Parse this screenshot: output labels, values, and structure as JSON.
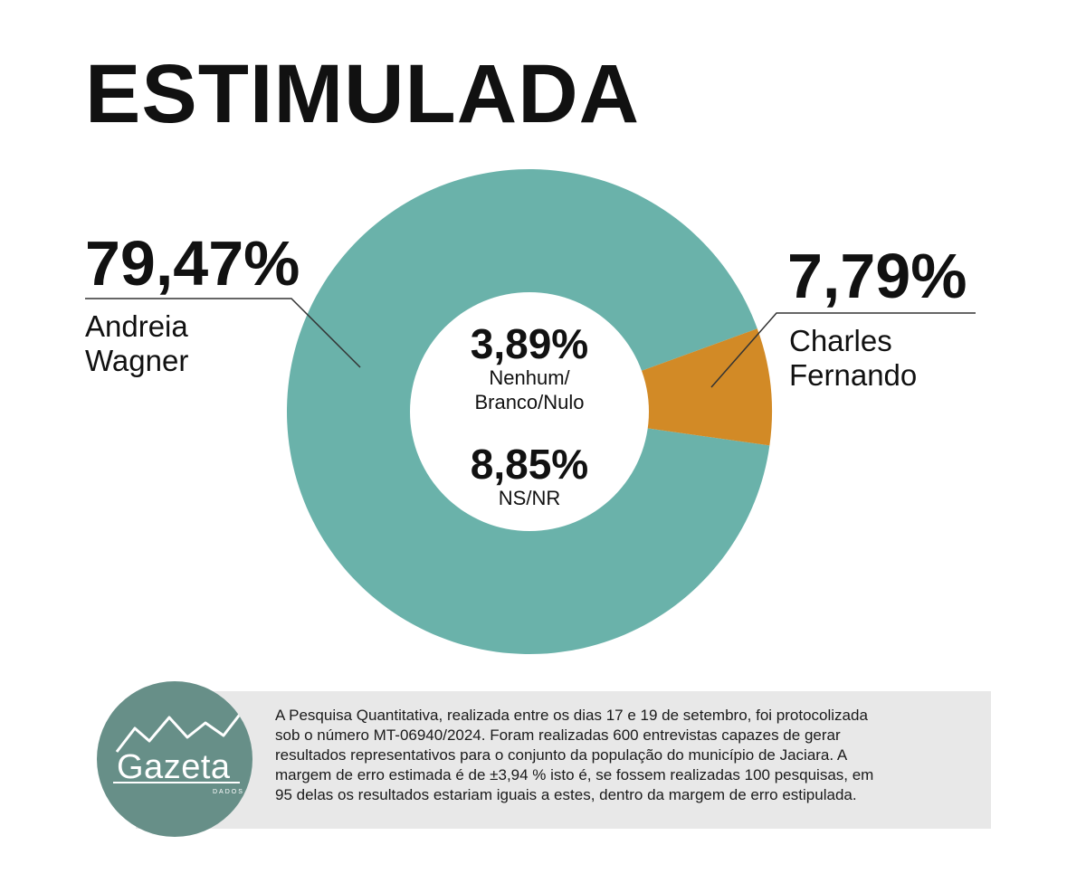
{
  "title": "ESTIMULADA",
  "chart_data": {
    "type": "pie",
    "title": "ESTIMULADA",
    "slices": [
      {
        "label": "Andreia Wagner",
        "value": 79.47,
        "display": "79,47%",
        "color": "#6ab2aa"
      },
      {
        "label": "Charles Fernando",
        "value": 7.79,
        "display": "7,79%",
        "color": "#d28a26"
      }
    ],
    "center_values": [
      {
        "display": "3,89%",
        "label_lines": [
          "Nenhum/",
          "Branco/Nulo"
        ]
      },
      {
        "display": "8,85%",
        "label_lines": [
          "NS/NR"
        ]
      }
    ]
  },
  "labels": {
    "left_pct": "79,47%",
    "left_name": [
      "Andreia",
      "Wagner"
    ],
    "right_pct": "7,79%",
    "right_name": [
      "Charles",
      "Fernando"
    ]
  },
  "center": {
    "pct1": "3,89%",
    "lbl1_a": "Nenhum/",
    "lbl1_b": "Branco/Nulo",
    "pct2": "8,85%",
    "lbl2": "NS/NR"
  },
  "footnote": {
    "lines": [
      "A Pesquisa Quantitativa, realizada entre os dias 17 e 19 de setembro, foi protocolizada",
      "sob o número MT-06940/2024. Foram realizadas 600 entrevistas capazes de gerar",
      "resultados representativos para o conjunto da população do município de Jaciara. A",
      "margem de erro estimada é de ±3,94 %  isto é, se fossem realizadas 100 pesquisas, em",
      "95 delas os resultados estariam iguais a estes, dentro da margem de erro estipulada."
    ]
  },
  "logo": {
    "word": "Gazeta",
    "sub": "DADOS"
  },
  "colors": {
    "teal": "#6ab2aa",
    "orange": "#d28a26",
    "logo_bg": "#678f88",
    "note_bg": "#e8e8e8"
  }
}
